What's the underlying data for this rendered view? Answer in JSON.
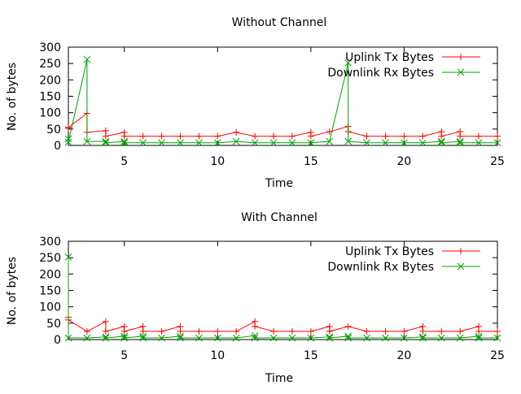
{
  "chart_data": [
    {
      "type": "line",
      "title": "Without Channel",
      "xlabel": "Time",
      "ylabel": "No. of bytes",
      "xlim": [
        2,
        25
      ],
      "ylim": [
        0,
        300
      ],
      "xticks": [
        5,
        10,
        15,
        20,
        25
      ],
      "yticks": [
        0,
        50,
        100,
        150,
        200,
        250,
        300
      ],
      "grid": false,
      "legend_position": "top-right",
      "series": [
        {
          "name": "Uplink Tx Bytes",
          "color": "#ff0000",
          "marker": "plus",
          "points": [
            [
              2,
              52
            ],
            [
              2,
              55
            ],
            [
              3,
              98
            ],
            [
              3,
              40
            ],
            [
              4,
              45
            ],
            [
              4,
              28
            ],
            [
              5,
              40
            ],
            [
              5,
              28
            ],
            [
              6,
              28
            ],
            [
              7,
              28
            ],
            [
              8,
              28
            ],
            [
              9,
              28
            ],
            [
              10,
              28
            ],
            [
              11,
              40
            ],
            [
              12,
              28
            ],
            [
              13,
              28
            ],
            [
              14,
              28
            ],
            [
              15,
              40
            ],
            [
              15,
              28
            ],
            [
              16,
              42
            ],
            [
              17,
              58
            ],
            [
              17,
              42
            ],
            [
              18,
              28
            ],
            [
              19,
              28
            ],
            [
              20,
              28
            ],
            [
              21,
              28
            ],
            [
              22,
              42
            ],
            [
              22,
              28
            ],
            [
              23,
              42
            ],
            [
              23,
              28
            ],
            [
              24,
              28
            ],
            [
              25,
              28
            ]
          ]
        },
        {
          "name": "Downlink Rx Bytes",
          "color": "#00a000",
          "marker": "x",
          "points": [
            [
              2,
              20
            ],
            [
              2,
              10
            ],
            [
              3,
              262
            ],
            [
              3,
              12
            ],
            [
              4,
              12
            ],
            [
              4,
              8
            ],
            [
              5,
              12
            ],
            [
              5,
              8
            ],
            [
              6,
              8
            ],
            [
              7,
              8
            ],
            [
              8,
              8
            ],
            [
              9,
              8
            ],
            [
              10,
              8
            ],
            [
              11,
              12
            ],
            [
              12,
              8
            ],
            [
              13,
              8
            ],
            [
              14,
              8
            ],
            [
              15,
              8
            ],
            [
              16,
              12
            ],
            [
              17,
              252
            ],
            [
              17,
              12
            ],
            [
              18,
              8
            ],
            [
              19,
              8
            ],
            [
              20,
              8
            ],
            [
              21,
              8
            ],
            [
              22,
              12
            ],
            [
              22,
              8
            ],
            [
              23,
              12
            ],
            [
              23,
              8
            ],
            [
              24,
              8
            ],
            [
              25,
              8
            ]
          ]
        }
      ]
    },
    {
      "type": "line",
      "title": "With Channel",
      "xlabel": "Time",
      "ylabel": "No. of bytes",
      "xlim": [
        2,
        25
      ],
      "ylim": [
        0,
        300
      ],
      "xticks": [
        5,
        10,
        15,
        20,
        25
      ],
      "yticks": [
        0,
        50,
        100,
        150,
        200,
        250,
        300
      ],
      "grid": false,
      "legend_position": "top-right",
      "series": [
        {
          "name": "Uplink Tx Bytes",
          "color": "#ff0000",
          "marker": "plus",
          "points": [
            [
              2,
              68
            ],
            [
              2,
              60
            ],
            [
              3,
              25
            ],
            [
              4,
              55
            ],
            [
              4,
              25
            ],
            [
              5,
              40
            ],
            [
              5,
              25
            ],
            [
              6,
              40
            ],
            [
              6,
              25
            ],
            [
              7,
              25
            ],
            [
              8,
              40
            ],
            [
              8,
              25
            ],
            [
              9,
              25
            ],
            [
              10,
              25
            ],
            [
              11,
              25
            ],
            [
              12,
              55
            ],
            [
              12,
              40
            ],
            [
              13,
              25
            ],
            [
              14,
              25
            ],
            [
              15,
              25
            ],
            [
              16,
              40
            ],
            [
              16,
              25
            ],
            [
              17,
              40
            ],
            [
              18,
              25
            ],
            [
              19,
              25
            ],
            [
              20,
              25
            ],
            [
              21,
              40
            ],
            [
              21,
              25
            ],
            [
              22,
              25
            ],
            [
              23,
              25
            ],
            [
              24,
              40
            ],
            [
              24,
              25
            ],
            [
              25,
              25
            ]
          ]
        },
        {
          "name": "Downlink Rx Bytes",
          "color": "#00a000",
          "marker": "x",
          "points": [
            [
              2,
              252
            ],
            [
              2,
              5
            ],
            [
              3,
              5
            ],
            [
              4,
              8
            ],
            [
              4,
              5
            ],
            [
              5,
              10
            ],
            [
              5,
              5
            ],
            [
              6,
              10
            ],
            [
              6,
              5
            ],
            [
              7,
              5
            ],
            [
              8,
              10
            ],
            [
              8,
              5
            ],
            [
              9,
              5
            ],
            [
              10,
              5
            ],
            [
              11,
              5
            ],
            [
              12,
              12
            ],
            [
              12,
              5
            ],
            [
              13,
              5
            ],
            [
              14,
              5
            ],
            [
              15,
              5
            ],
            [
              16,
              8
            ],
            [
              16,
              5
            ],
            [
              17,
              10
            ],
            [
              17,
              5
            ],
            [
              18,
              5
            ],
            [
              19,
              5
            ],
            [
              20,
              5
            ],
            [
              21,
              8
            ],
            [
              21,
              5
            ],
            [
              22,
              5
            ],
            [
              23,
              5
            ],
            [
              24,
              10
            ],
            [
              24,
              5
            ],
            [
              25,
              5
            ]
          ]
        }
      ]
    }
  ]
}
